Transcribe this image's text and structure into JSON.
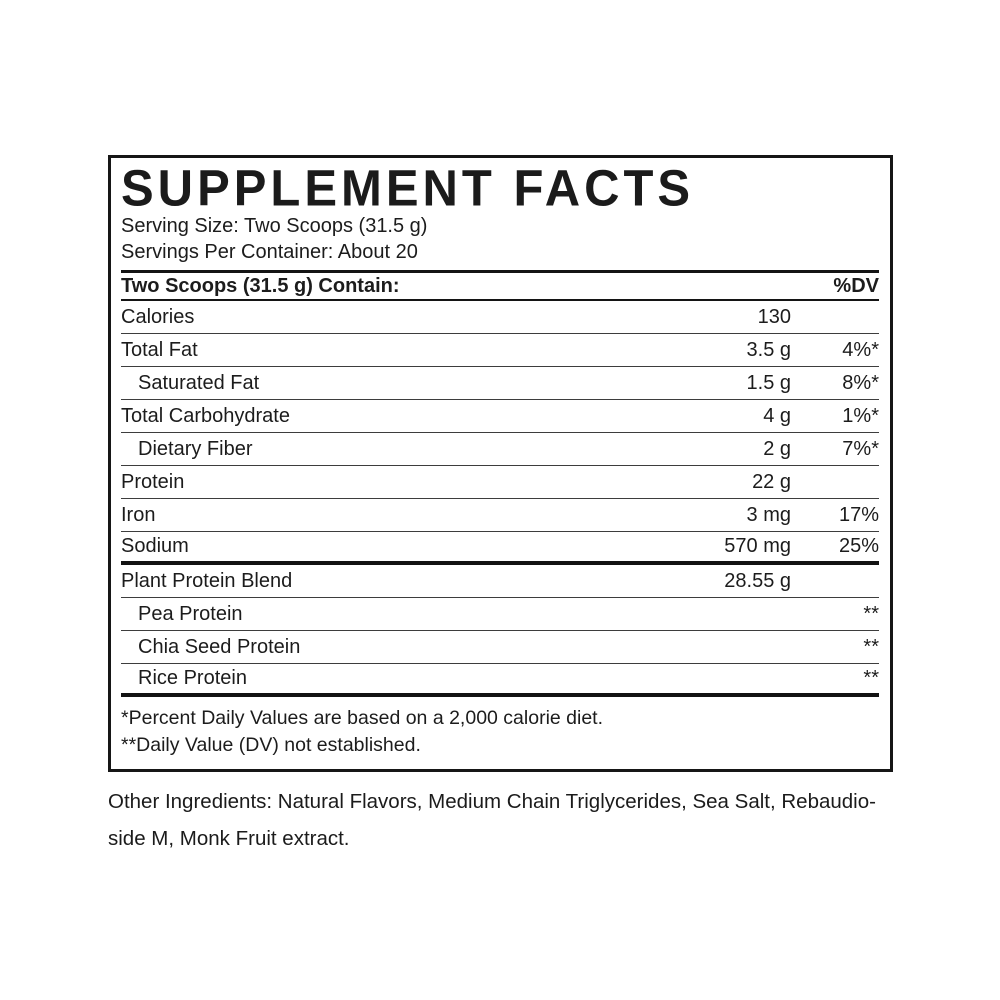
{
  "label": {
    "title": "SUPPLEMENT FACTS",
    "serving_size": "Serving Size: Two Scoops (31.5 g)",
    "servings_per_container": "Servings Per Container: About 20",
    "table": {
      "header": {
        "contain": "Two Scoops (31.5 g) Contain:",
        "dv": "%DV"
      },
      "rows": [
        {
          "name": "Calories",
          "amount": "130",
          "dv": ""
        },
        {
          "name": "Total Fat",
          "amount": "3.5 g",
          "dv": "4%*"
        },
        {
          "name": "Saturated Fat",
          "amount": "1.5 g",
          "dv": "8%*"
        },
        {
          "name": "Total Carbohydrate",
          "amount": "4 g",
          "dv": "1%*"
        },
        {
          "name": "Dietary Fiber",
          "amount": "2 g",
          "dv": "7%*"
        },
        {
          "name": "Protein",
          "amount": "22 g",
          "dv": ""
        },
        {
          "name": "Iron",
          "amount": "3 mg",
          "dv": "17%"
        },
        {
          "name": "Sodium",
          "amount": "570 mg",
          "dv": "25%"
        },
        {
          "name": "Plant Protein Blend",
          "amount": "28.55 g",
          "dv": ""
        },
        {
          "name": "Pea Protein",
          "amount": "",
          "dv": "**"
        },
        {
          "name": "Chia Seed Protein",
          "amount": "",
          "dv": "**"
        },
        {
          "name": "Rice Protein",
          "amount": "",
          "dv": "**"
        }
      ]
    },
    "footnotes": {
      "daily_values": "*Percent Daily Values are based on a 2,000 calorie diet.",
      "dv_not_established": "**Daily Value (DV) not established."
    },
    "other_ingredients": {
      "line1": "Other Ingredients: Natural Flavors, Medium Chain Triglycerides, Sea Salt, Rebaudio-",
      "line2": "side M, Monk Fruit extract."
    }
  },
  "colors": {
    "text": "#1c1c1c",
    "background": "#ffffff",
    "rule_thin": "#3d3d3d",
    "rule_thick": "#121212"
  }
}
